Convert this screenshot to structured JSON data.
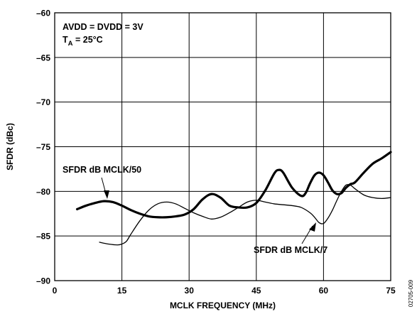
{
  "chart_data": {
    "type": "line",
    "xlabel": "MCLK FREQUENCY (MHz)",
    "ylabel": "SFDR (dBc)",
    "xlim": [
      0,
      75
    ],
    "ylim": [
      -90,
      -60
    ],
    "xticks": [
      0,
      15,
      30,
      45,
      60,
      75
    ],
    "yticks": [
      -90,
      -85,
      -80,
      -75,
      -70,
      -65,
      -60
    ],
    "xtick_labels": [
      "0",
      "15",
      "30",
      "45",
      "60",
      "75"
    ],
    "ytick_labels": [
      "–90",
      "–85",
      "–80",
      "–75",
      "–70",
      "–65",
      "–60"
    ],
    "grid": true,
    "conditions": {
      "line1": "AVDD = DVDD = 3V",
      "line2_main": "T",
      "line2_sub": "A",
      "line2_rest": " = 25°C"
    },
    "figure_id": "02705-009",
    "series": [
      {
        "name": "SFDR dB MCLK/50",
        "style": "thick",
        "color": "#000000",
        "x": [
          5,
          7,
          9,
          11,
          13,
          15,
          17,
          19,
          21,
          23,
          25,
          27,
          29,
          31,
          33,
          35,
          37,
          39,
          41,
          43,
          45,
          47,
          49,
          50,
          51,
          53,
          55,
          56,
          57,
          58,
          59,
          60,
          61,
          62,
          63,
          64,
          65,
          66,
          67,
          69,
          71,
          73,
          75
        ],
        "y": [
          -82.0,
          -81.6,
          -81.3,
          -81.1,
          -81.2,
          -81.6,
          -82.1,
          -82.5,
          -82.8,
          -82.9,
          -82.9,
          -82.8,
          -82.6,
          -82.0,
          -80.9,
          -80.3,
          -80.7,
          -81.6,
          -81.8,
          -81.8,
          -81.3,
          -79.9,
          -78.0,
          -77.6,
          -77.9,
          -79.6,
          -80.5,
          -80.2,
          -79.1,
          -78.2,
          -77.9,
          -78.2,
          -79.0,
          -79.9,
          -80.3,
          -80.2,
          -79.6,
          -79.2,
          -79.0,
          -77.9,
          -76.9,
          -76.3,
          -75.6
        ]
      },
      {
        "name": "SFDR dB MCLK/7",
        "style": "thin",
        "color": "#000000",
        "x": [
          10,
          12,
          14,
          15,
          16,
          17,
          19,
          21,
          23,
          25,
          27,
          29,
          31,
          33,
          35,
          37,
          39,
          41,
          43,
          45,
          47,
          49,
          51,
          53,
          55,
          57,
          58,
          59,
          60,
          61,
          62,
          63,
          64,
          65,
          66,
          67,
          69,
          71,
          73,
          75
        ],
        "y": [
          -85.7,
          -85.9,
          -86.0,
          -85.9,
          -85.6,
          -84.8,
          -83.3,
          -82.1,
          -81.4,
          -81.2,
          -81.4,
          -81.9,
          -82.4,
          -82.8,
          -83.1,
          -82.9,
          -82.4,
          -81.8,
          -81.2,
          -81.0,
          -81.2,
          -81.4,
          -81.5,
          -81.6,
          -81.8,
          -82.4,
          -82.9,
          -83.5,
          -83.6,
          -83.0,
          -82.1,
          -81.0,
          -80.0,
          -79.3,
          -79.3,
          -79.7,
          -80.4,
          -80.7,
          -80.8,
          -80.7
        ]
      }
    ],
    "annotations": [
      {
        "text": "SFDR dB MCLK/50",
        "series": 0
      },
      {
        "text": "SFDR dB MCLK/7",
        "series": 1
      }
    ]
  }
}
